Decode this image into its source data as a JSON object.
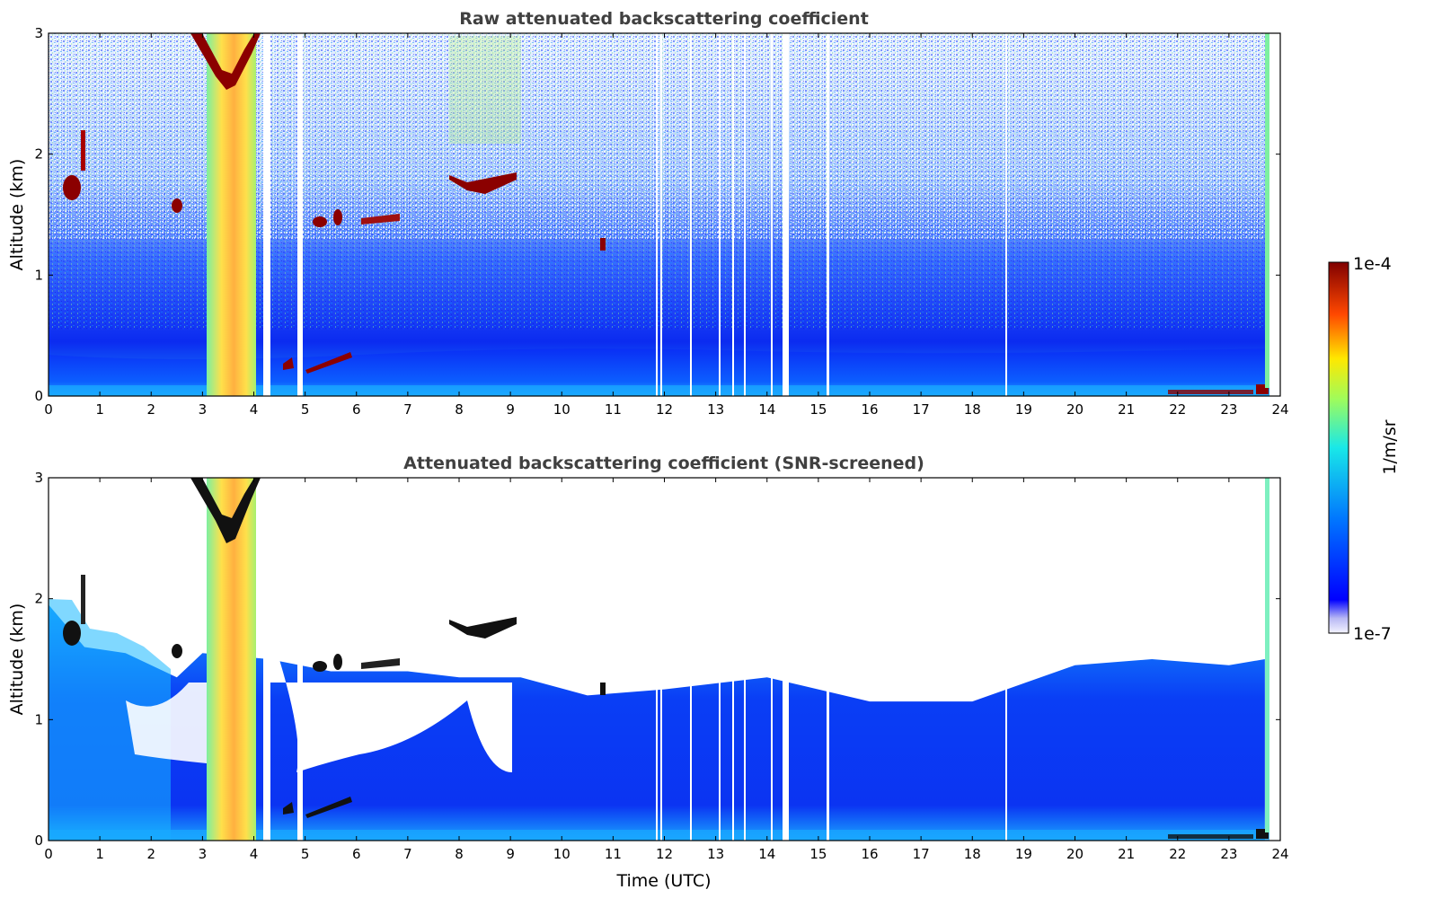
{
  "chart_data": [
    {
      "type": "heatmap",
      "title": "Raw attenuated backscattering coefficient",
      "xlabel": "",
      "ylabel": "Altitude (km)",
      "xlim": [
        0,
        24
      ],
      "ylim": [
        0,
        3
      ],
      "xticks": [
        "0",
        "1",
        "2",
        "3",
        "4",
        "5",
        "6",
        "7",
        "8",
        "9",
        "10",
        "11",
        "12",
        "13",
        "14",
        "15",
        "16",
        "17",
        "18",
        "19",
        "20",
        "21",
        "22",
        "23",
        "24"
      ],
      "yticks": [
        "0",
        "1",
        "2",
        "3"
      ],
      "screened": false,
      "features": {
        "boundary_layer_top_km": 0.45,
        "aerosol_plume": {
          "x": [
            3.1,
            4.2
          ],
          "y": [
            0,
            3
          ]
        },
        "cloud_layers": [
          {
            "x": [
              0.3,
              0.65
            ],
            "y": [
              1.62,
              1.85
            ]
          },
          {
            "x": [
              2.35,
              2.6
            ],
            "y": [
              1.5,
              1.62
            ]
          },
          {
            "x": [
              4.85,
              5.7
            ],
            "y": [
              1.38,
              1.52
            ]
          },
          {
            "x": [
              6.1,
              6.85
            ],
            "y": [
              1.43,
              1.52
            ]
          },
          {
            "x": [
              7.85,
              9.1
            ],
            "y": [
              1.65,
              1.85
            ]
          },
          {
            "x": [
              10.75,
              10.85
            ],
            "y": [
              1.2,
              1.3
            ]
          },
          {
            "x": [
              22.0,
              23.8
            ],
            "y": [
              0.0,
              0.05
            ]
          }
        ],
        "data_gaps_utc": [
          4.25,
          4.9,
          11.9,
          12.5,
          13.2,
          13.7,
          14.15,
          14.4,
          15.2
        ]
      }
    },
    {
      "type": "heatmap",
      "title": "Attenuated backscattering coefficient (SNR-screened)",
      "xlabel": "Time (UTC)",
      "ylabel": "Altitude (km)",
      "xlim": [
        0,
        24
      ],
      "ylim": [
        0,
        3
      ],
      "xticks": [
        "0",
        "1",
        "2",
        "3",
        "4",
        "5",
        "6",
        "7",
        "8",
        "9",
        "10",
        "11",
        "12",
        "13",
        "14",
        "15",
        "16",
        "17",
        "18",
        "19",
        "20",
        "21",
        "22",
        "23",
        "24"
      ],
      "yticks": [
        "0",
        "1",
        "2",
        "3"
      ],
      "screened": true,
      "valid_top_km": [
        [
          0,
          1.95
        ],
        [
          0.7,
          1.6
        ],
        [
          1.5,
          1.55
        ],
        [
          2.5,
          1.35
        ],
        [
          3.0,
          1.55
        ],
        [
          4.3,
          1.5
        ],
        [
          5.5,
          1.4
        ],
        [
          7.0,
          1.4
        ],
        [
          8.0,
          1.35
        ],
        [
          9.2,
          1.35
        ],
        [
          10.5,
          1.2
        ],
        [
          12.0,
          1.25
        ],
        [
          14.0,
          1.35
        ],
        [
          16.0,
          1.15
        ],
        [
          18.0,
          1.15
        ],
        [
          20.0,
          1.45
        ],
        [
          21.5,
          1.5
        ],
        [
          23.0,
          1.45
        ],
        [
          23.7,
          1.5
        ]
      ]
    }
  ],
  "colorbar": {
    "label": "1/m/sr",
    "max_label": "1e-4",
    "min_label": "1e-7",
    "scale": "log",
    "colormap": "jet"
  }
}
